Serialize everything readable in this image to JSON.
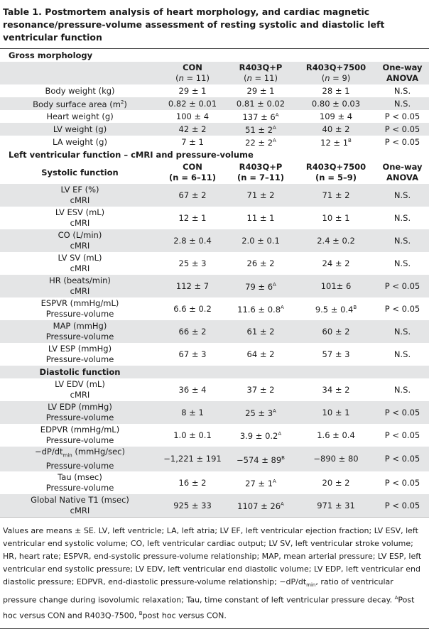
{
  "title": "Table 1. Postmortem analysis of heart morphology, and cardiac magnetic resonance/pressure-volume assessment of resting systolic and diastolic left ventricular function",
  "gross": {
    "heading": "Gross morphology",
    "columns": [
      {
        "name": "CON",
        "n": [
          "(",
          {
            "i": "n"
          },
          " = 11)"
        ]
      },
      {
        "name": "R403Q+P",
        "n": [
          "(",
          {
            "i": "n"
          },
          " = 11)"
        ]
      },
      {
        "name": "R403Q+7500",
        "n": [
          "(",
          {
            "i": "n"
          },
          " = 9)"
        ]
      }
    ],
    "anova": "One-way ANOVA",
    "rows": [
      [
        "Body weight (kg)",
        "29 ± 1",
        "29 ± 1",
        "28 ± 1",
        "N.S."
      ],
      [
        [
          "Body surface area (m",
          {
            "sup": "2"
          },
          ")"
        ],
        "0.82 ± 0.01",
        "0.81 ± 0.02",
        "0.80 ± 0.03",
        "N.S."
      ],
      [
        "Heart weight (g)",
        "100 ± 4",
        [
          "137 ± 6",
          {
            "sup": "A"
          }
        ],
        "109 ± 4",
        "P < 0.05"
      ],
      [
        "LV weight (g)",
        "42 ± 2",
        [
          "51 ± 2",
          {
            "sup": "A"
          }
        ],
        "40 ± 2",
        "P < 0.05"
      ],
      [
        "LA weight (g)",
        "7 ± 1",
        [
          "22 ± 2",
          {
            "sup": "A"
          }
        ],
        [
          "12 ± 1",
          {
            "sup": "B"
          }
        ],
        "P < 0.05"
      ]
    ]
  },
  "lv": {
    "heading": "Left ventricular function – cMRI and pressure-volume",
    "systolic": "Systolic function",
    "columns": [
      {
        "name": "CON",
        "n": "(n = 6–11)"
      },
      {
        "name": "R403Q+P",
        "n": "(n = 7–11)"
      },
      {
        "name": "R403Q+7500",
        "n": "(n = 5–9)"
      }
    ],
    "anova": "One-way ANOVA",
    "systolic_rows": [
      [
        "LV EF (%)",
        "cMRI",
        "67 ± 2",
        "71 ± 2",
        "71 ± 2",
        "N.S."
      ],
      [
        "LV ESV (mL)",
        "cMRI",
        "12 ± 1",
        "11 ± 1",
        "10 ± 1",
        "N.S."
      ],
      [
        "CO (L/min)",
        "cMRI",
        "2.8 ± 0.4",
        "2.0 ± 0.1",
        "2.4 ± 0.2",
        "N.S."
      ],
      [
        "LV SV (mL)",
        "cMRI",
        "25 ± 3",
        "26 ± 2",
        "24 ± 2",
        "N.S."
      ],
      [
        "HR (beats/min)",
        "cMRI",
        "112 ± 7",
        [
          "79 ± 6",
          {
            "sup": "A"
          }
        ],
        "101± 6",
        "P < 0.05"
      ],
      [
        "ESPVR (mmHg/mL)",
        "Pressure-volume",
        "6.6 ± 0.2",
        [
          "11.6 ± 0.8",
          {
            "sup": "A"
          }
        ],
        [
          "9.5 ± 0.4",
          {
            "sup": "B"
          }
        ],
        "P < 0.05"
      ],
      [
        "MAP (mmHg)",
        "Pressure-volume",
        "66 ± 2",
        "61 ± 2",
        "60 ± 2",
        "N.S."
      ],
      [
        "LV ESP (mmHg)",
        "Pressure-volume",
        "67 ± 3",
        "64 ± 2",
        "57 ± 3",
        "N.S."
      ]
    ],
    "diastolic": "Diastolic function",
    "diastolic_rows": [
      [
        "LV EDV (mL)",
        "cMRI",
        "36 ± 4",
        "37 ± 2",
        "34 ± 2",
        "N.S."
      ],
      [
        "LV EDP (mmHg)",
        "Pressure-volume",
        "8 ± 1",
        [
          "25 ± 3",
          {
            "sup": "A"
          }
        ],
        "10 ± 1",
        "P < 0.05"
      ],
      [
        "EDPVR (mmHg/mL)",
        "Pressure-volume",
        "1.0 ± 0.1",
        [
          "3.9 ± 0.2",
          {
            "sup": "A"
          }
        ],
        "1.6 ± 0.4",
        "P < 0.05"
      ],
      [
        [
          "−dP/dt",
          {
            "sub": "min"
          },
          " (mmHg/sec)"
        ],
        "Pressure-volume",
        "−1,221 ± 191",
        [
          "−574 ± 89",
          {
            "sup": "B"
          }
        ],
        "−890 ± 80",
        "P < 0.05"
      ],
      [
        "Tau (msec)",
        "Pressure-volume",
        "16 ± 2",
        [
          "27 ± 1",
          {
            "sup": "A"
          }
        ],
        "20 ± 2",
        "P < 0.05"
      ],
      [
        "Global Native T1 (msec)",
        "cMRI",
        "925 ± 33",
        [
          "1107 ± 26",
          {
            "sup": "A"
          }
        ],
        "971 ± 31",
        "P < 0.05"
      ]
    ]
  },
  "footnote": [
    "Values are means ± SE. LV, left ventricle; LA, left atria; LV EF, left ventricular ejection fraction; LV ESV, left ventricular end systolic volume; CO, left ventricular cardiac output; LV SV, left ventricular stroke volume; HR, heart rate; ESPVR, end-systolic pressure-volume relationship; MAP, mean arterial pressure; LV ESP, left ventricular end systolic pressure; LV EDV, left ventricular end diastolic volume; LV EDP, left ventricular end diastolic pressure; EDPVR, end-diastolic pressure-volume relationship; −dP/dt",
    {
      "sub": "min"
    },
    ", ratio of ventricular pressure change during isovolumic relaxation; Tau, time constant of left ventricular pressure decay. ",
    {
      "sup": "A"
    },
    "Post hoc versus CON and R403Q-7500, ",
    {
      "sup": "B"
    },
    "post hoc versus CON."
  ]
}
